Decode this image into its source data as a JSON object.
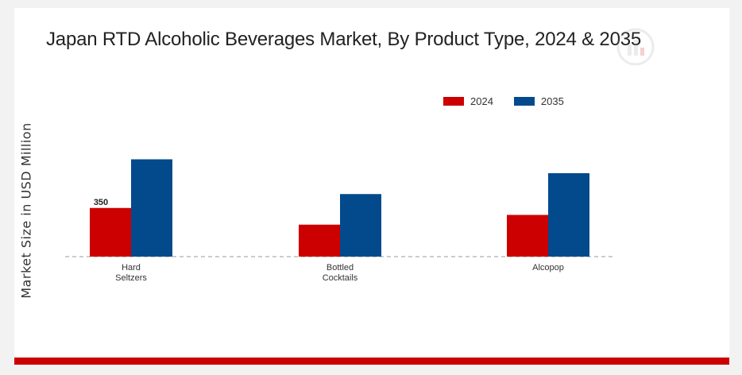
{
  "chart_data": {
    "type": "bar",
    "title": "Japan RTD Alcoholic Beverages Market, By Product Type, 2024 & 2035",
    "ylabel": "Market Size in USD Million",
    "xlabel": "",
    "categories": [
      "Hard\nSeltzers",
      "Bottled\nCocktails",
      "Alcopop"
    ],
    "series": [
      {
        "name": "2024",
        "color": "#cc0000",
        "values": [
          350,
          230,
          300
        ]
      },
      {
        "name": "2035",
        "color": "#034a8c",
        "values": [
          700,
          450,
          600
        ]
      }
    ],
    "data_labels": [
      {
        "series": 0,
        "index": 0,
        "text": "350"
      }
    ],
    "ylim": [
      0,
      1000
    ],
    "legend_position": "top-right",
    "grid": false,
    "baseline_style": "dashed"
  }
}
